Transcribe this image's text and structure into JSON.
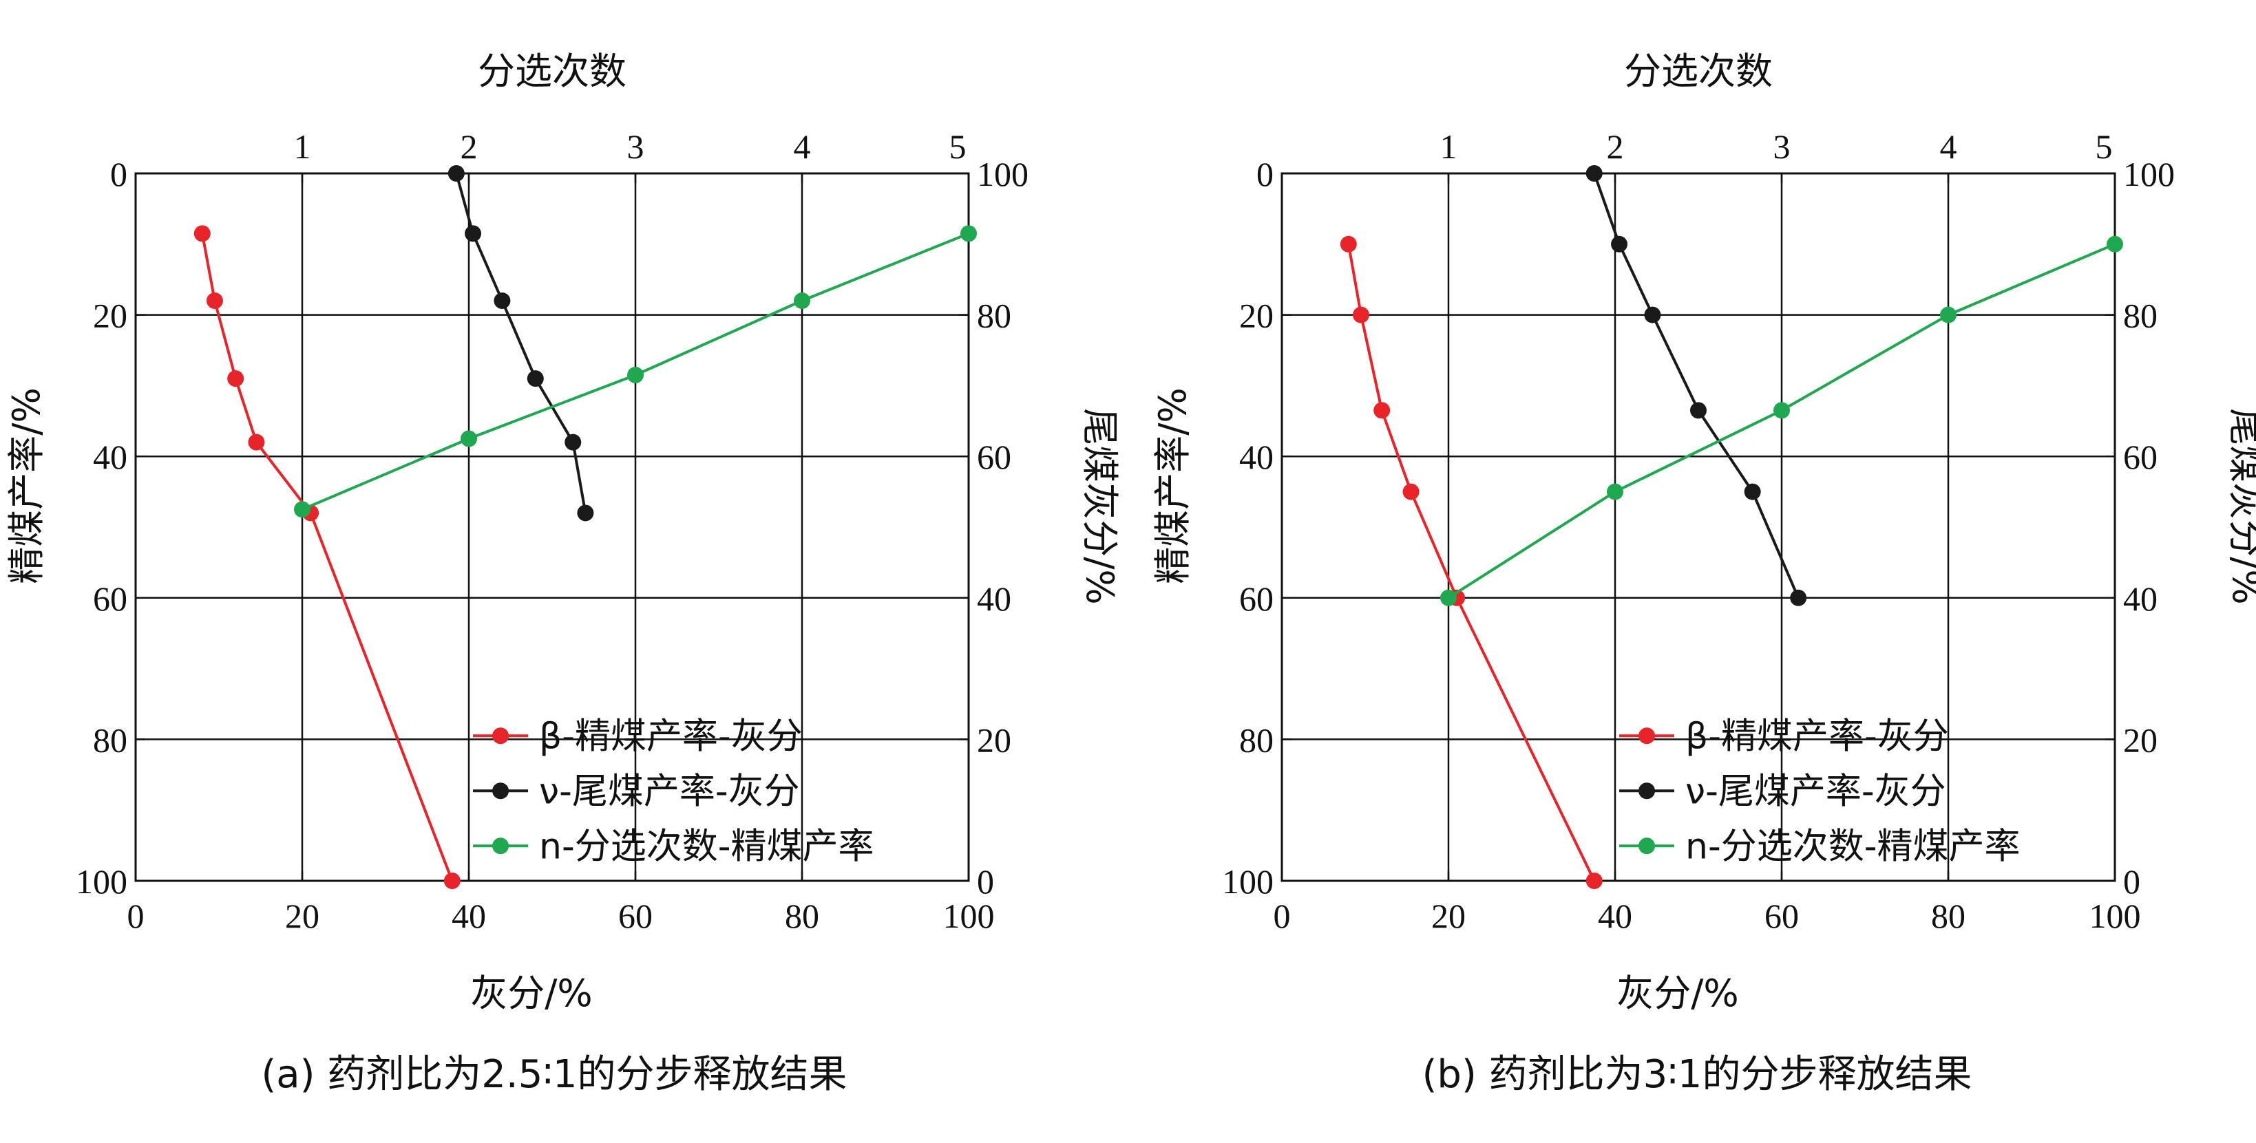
{
  "chart_data": [
    {
      "type": "line",
      "panel_caption": "(a) 药剂比为2.5∶1的分步释放结果",
      "xlabel": "灰分/%",
      "x_top_label": "分选次数",
      "ylabel_left": "精煤产率/%",
      "ylabel_right": "尾煤灰分/%",
      "x_ticks": [
        "0",
        "20",
        "40",
        "60",
        "80",
        "100"
      ],
      "x_top_ticks": [
        "1",
        "2",
        "3",
        "4",
        "5"
      ],
      "y_left_ticks": [
        "0",
        "20",
        "40",
        "60",
        "80",
        "100"
      ],
      "y_right_ticks": [
        "100",
        "80",
        "60",
        "40",
        "20",
        "0"
      ],
      "xlim": [
        0,
        100
      ],
      "ylim_left": [
        0,
        100
      ],
      "ylim_right": [
        100,
        0
      ],
      "grid": true,
      "legend_position": "lower-right",
      "series": [
        {
          "name": "β-精煤产率-灰分",
          "color": "#e8242a",
          "x": [
            8,
            9.5,
            12,
            14.5,
            21,
            38
          ],
          "y": [
            8.5,
            18,
            29,
            38,
            48,
            100
          ]
        },
        {
          "name": "ν-尾煤产率-灰分",
          "color": "#1a1a1a",
          "x": [
            38.5,
            40.5,
            44,
            48,
            52.5,
            54
          ],
          "y": [
            0,
            8.5,
            18,
            29,
            38,
            48
          ]
        },
        {
          "name": "n-分选次数-精煤产率",
          "color": "#1fa850",
          "x": [
            1,
            2,
            3,
            4,
            5
          ],
          "y": [
            47.5,
            37.5,
            28.5,
            18,
            8.5
          ]
        }
      ]
    },
    {
      "type": "line",
      "panel_caption": "(b) 药剂比为3∶1的分步释放结果",
      "xlabel": "灰分/%",
      "x_top_label": "分选次数",
      "ylabel_left": "精煤产率/%",
      "ylabel_right": "尾煤灰分/%",
      "x_ticks": [
        "0",
        "20",
        "40",
        "60",
        "80",
        "100"
      ],
      "x_top_ticks": [
        "1",
        "2",
        "3",
        "4",
        "5"
      ],
      "y_left_ticks": [
        "0",
        "20",
        "40",
        "60",
        "80",
        "100"
      ],
      "y_right_ticks": [
        "100",
        "80",
        "60",
        "40",
        "20",
        "0"
      ],
      "xlim": [
        0,
        100
      ],
      "ylim_left": [
        0,
        100
      ],
      "ylim_right": [
        100,
        0
      ],
      "grid": true,
      "legend_position": "lower-right",
      "series": [
        {
          "name": "β-精煤产率-灰分",
          "color": "#e8242a",
          "x": [
            8,
            9.5,
            12,
            15.5,
            21,
            37.5
          ],
          "y": [
            10,
            20,
            33.5,
            45,
            60,
            100
          ]
        },
        {
          "name": "ν-尾煤产率-灰分",
          "color": "#1a1a1a",
          "x": [
            37.5,
            40.5,
            44.5,
            50,
            56.5,
            62
          ],
          "y": [
            0,
            10,
            20,
            33.5,
            45,
            60
          ]
        },
        {
          "name": "n-分选次数-精煤产率",
          "color": "#1fa850",
          "x": [
            1,
            2,
            3,
            4,
            5
          ],
          "y": [
            60,
            45,
            33.5,
            20,
            10
          ]
        }
      ]
    }
  ]
}
